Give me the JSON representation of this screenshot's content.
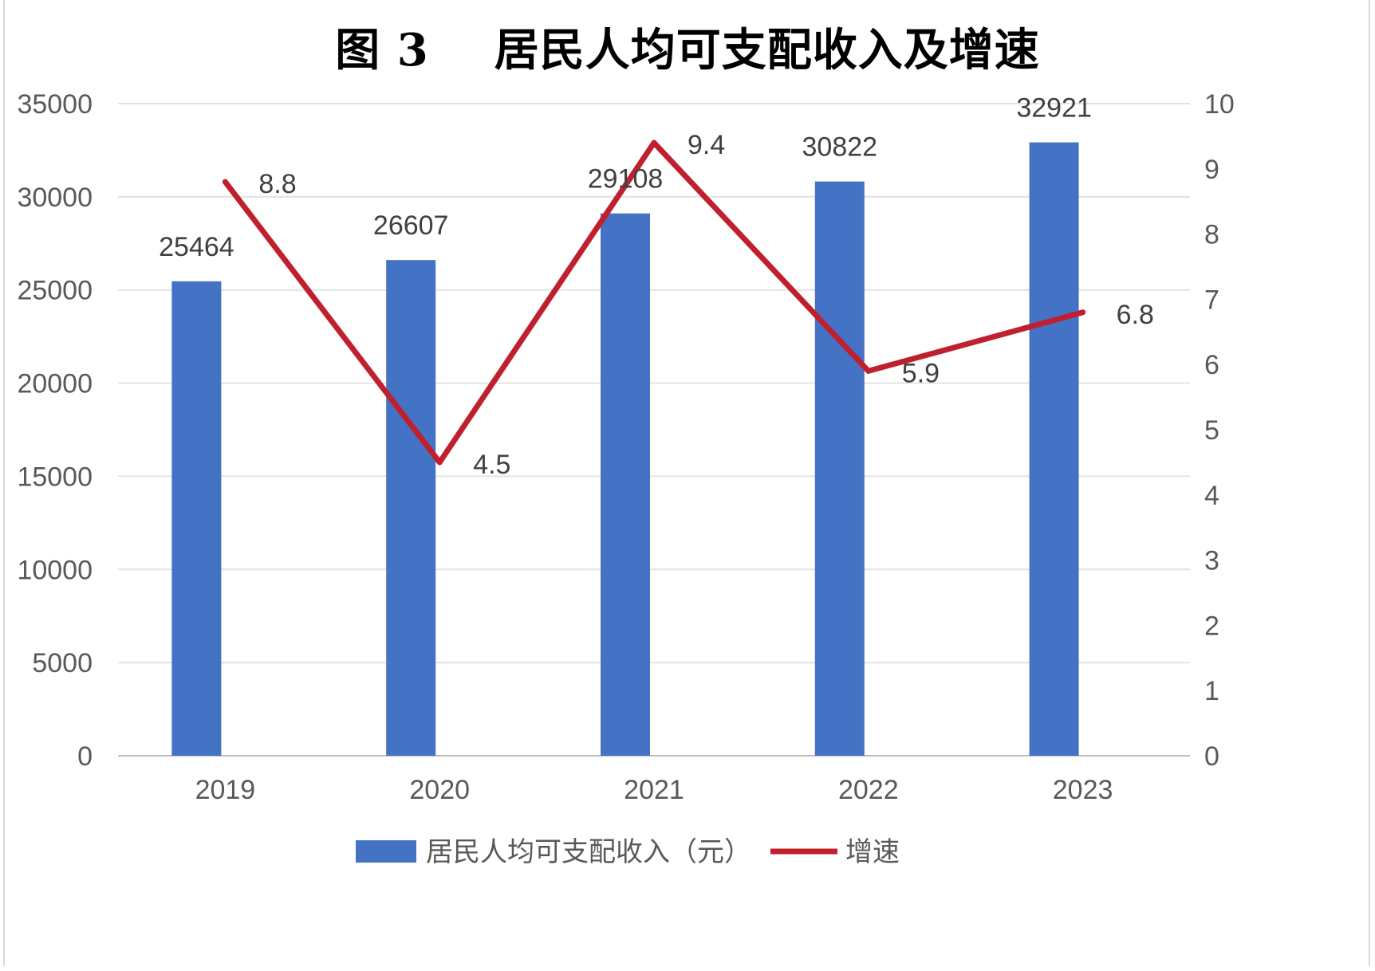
{
  "chart_data": {
    "type": "bar",
    "title": "图 3    居民人均可支配收入及增速",
    "categories": [
      "2019",
      "2020",
      "2021",
      "2022",
      "2023"
    ],
    "series": [
      {
        "name": "居民人均可支配收入（元）",
        "type": "bar",
        "axis": "left",
        "values": [
          25464,
          26607,
          29108,
          30822,
          32921
        ],
        "color": "#4472C4"
      },
      {
        "name": "增速",
        "type": "line",
        "axis": "right",
        "values": [
          8.8,
          4.5,
          9.4,
          5.9,
          6.8
        ],
        "color": "#C0202E"
      }
    ],
    "y_left": {
      "min": 0,
      "max": 35000,
      "step": 5000
    },
    "y_right": {
      "min": 0,
      "max": 10,
      "step": 1
    },
    "grid": true,
    "legend": "bottom-center"
  }
}
